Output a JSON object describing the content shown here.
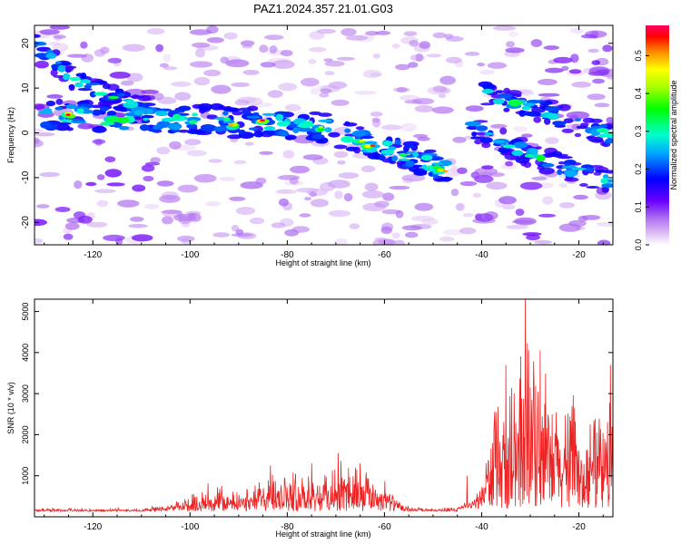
{
  "title": "PAZ1.2024.357.21.01.G03",
  "chart_data": [
    {
      "type": "heatmap",
      "xlabel": "Height of straight line (km)",
      "ylabel": "Frequency (Hz)",
      "xlim": [
        -132,
        -13
      ],
      "ylim": [
        -25,
        24
      ],
      "xticks": [
        -120,
        -100,
        -80,
        -60,
        -40,
        -20
      ],
      "yticks": [
        20,
        10,
        0,
        -10,
        -20
      ],
      "colorbar": {
        "label": "Normalized spectral amplitude",
        "range": [
          0.0,
          0.58
        ],
        "ticks": [
          0.0,
          0.1,
          0.2,
          0.3,
          0.4,
          0.5
        ]
      },
      "ridges": [
        {
          "x": [
            -130,
            -125,
            -120,
            -115,
            -110,
            -105,
            -100,
            -95,
            -90,
            -85,
            -80,
            -75,
            -70,
            -65,
            -60,
            -55,
            -50,
            -47
          ],
          "y": [
            3.5,
            4,
            3.5,
            2.5,
            3.5,
            3,
            3,
            3,
            2,
            2.5,
            2,
            1.5,
            0.5,
            -2,
            -3,
            -5,
            -7,
            -8.5
          ]
        },
        {
          "x": [
            -40,
            -35,
            -30,
            -25,
            -20,
            -15,
            -13
          ],
          "y": [
            9,
            7,
            6,
            4,
            2,
            0,
            -1
          ]
        },
        {
          "x": [
            -42,
            -37,
            -32,
            -27,
            -22,
            -17,
            -13
          ],
          "y": [
            1,
            -1,
            -4,
            -6,
            -8,
            -10,
            -11
          ]
        },
        {
          "x": [
            -132,
            -128,
            -124,
            -120,
            -116,
            -112,
            -108
          ],
          "y": [
            20,
            16,
            12,
            10,
            8,
            6,
            5
          ]
        }
      ],
      "peaks": [
        {
          "x": -125,
          "y": 4,
          "v": 0.55
        },
        {
          "x": -85,
          "y": 2.5,
          "v": 0.57
        },
        {
          "x": -91,
          "y": 1.5,
          "v": 0.5
        },
        {
          "x": -63,
          "y": -3,
          "v": 0.54
        },
        {
          "x": -48,
          "y": -8.5,
          "v": 0.5
        },
        {
          "x": -65,
          "y": -2,
          "v": 0.45
        },
        {
          "x": -73,
          "y": 1,
          "v": 0.42
        }
      ]
    },
    {
      "type": "line",
      "xlabel": "Height of straight line (km)",
      "ylabel": "SNR (10 * v/v)",
      "xlim": [
        -132,
        -13
      ],
      "ylim": [
        0,
        5300
      ],
      "xticks": [
        -120,
        -100,
        -80,
        -60,
        -40,
        -20
      ],
      "yticks": [
        1000,
        2000,
        3000,
        4000,
        5000
      ],
      "color": "#ee2222",
      "envelope": {
        "x": [
          -132,
          -120,
          -110,
          -104,
          -100,
          -96,
          -92,
          -88,
          -84,
          -80,
          -76,
          -72,
          -68,
          -64,
          -60,
          -56,
          -50,
          -45,
          -42,
          -40,
          -38,
          -35,
          -33,
          -31,
          -29,
          -27,
          -25,
          -23,
          -21,
          -19,
          -17,
          -15,
          -13
        ],
        "y": [
          200,
          180,
          200,
          300,
          450,
          750,
          650,
          600,
          1000,
          950,
          1050,
          1000,
          1250,
          1000,
          850,
          250,
          180,
          220,
          400,
          900,
          2300,
          2600,
          3000,
          3800,
          3300,
          3100,
          2900,
          2400,
          2600,
          2000,
          2200,
          2100,
          3500
        ]
      },
      "peaks": [
        {
          "x": -83.5,
          "y": 1250
        },
        {
          "x": -75,
          "y": 1300
        },
        {
          "x": -69.5,
          "y": 1550
        },
        {
          "x": -65,
          "y": 1300
        },
        {
          "x": -31,
          "y": 5300
        },
        {
          "x": -35,
          "y": 3700
        },
        {
          "x": -28,
          "y": 4050
        },
        {
          "x": -43,
          "y": 1000
        },
        {
          "x": -13.5,
          "y": 3700
        }
      ]
    }
  ]
}
